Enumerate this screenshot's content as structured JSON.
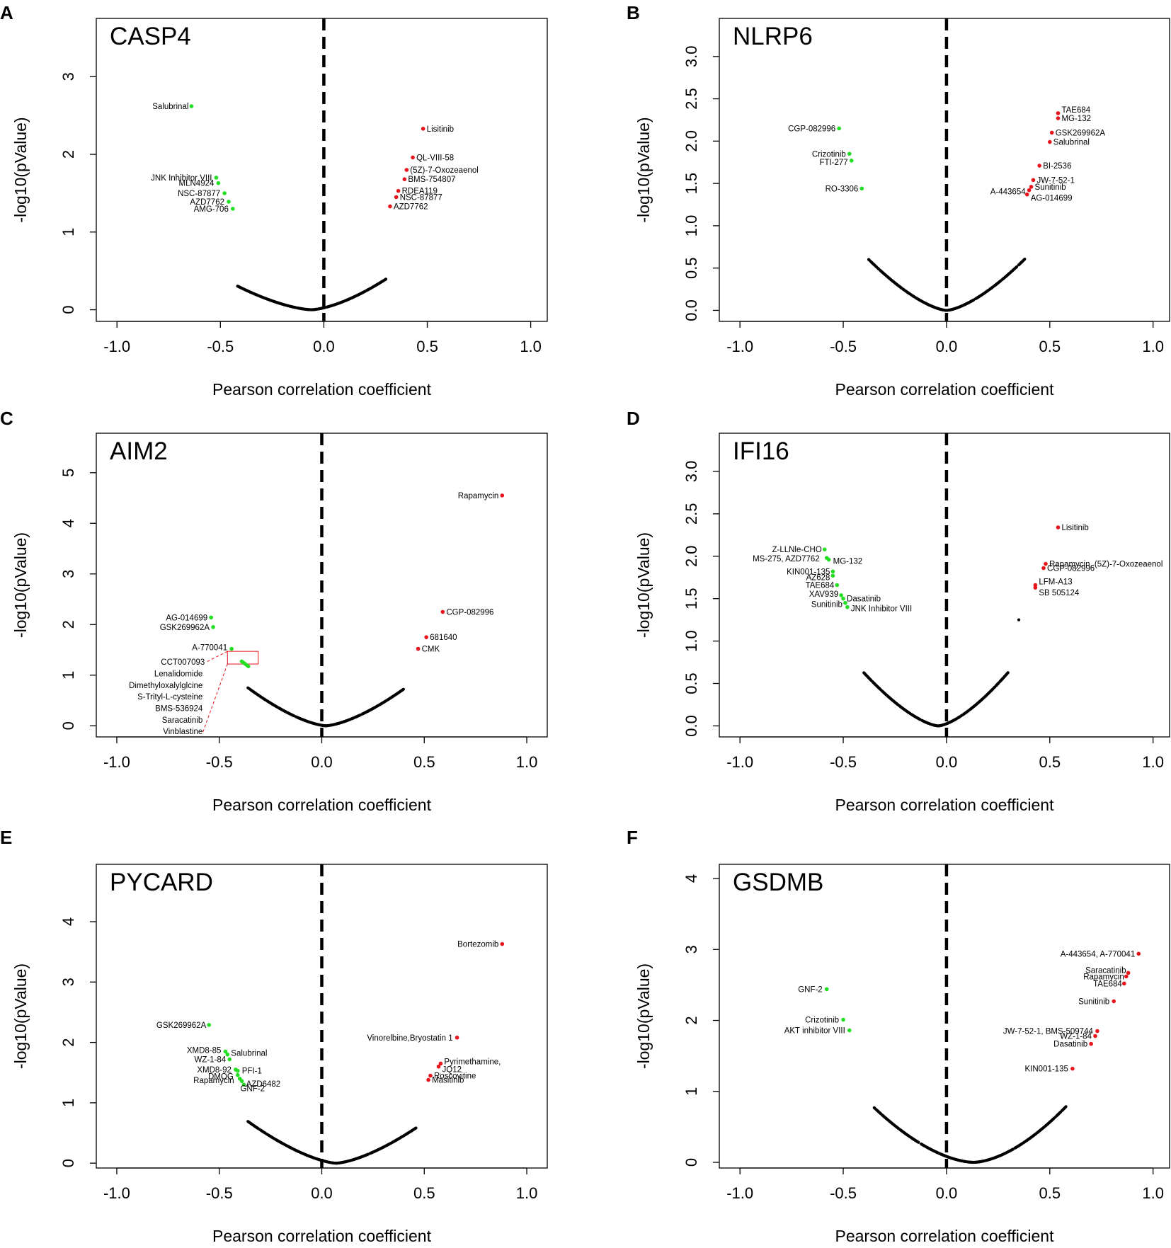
{
  "figure": {
    "panels_order": [
      "A",
      "B",
      "C",
      "D",
      "E",
      "F"
    ]
  },
  "chart_data": [
    {
      "panel": "A",
      "type": "scatter",
      "title": "CASP4",
      "xlabel": "Pearson correlation coefficient",
      "ylabel": "-log10(pValue)",
      "xlim": [
        -1.1,
        1.08
      ],
      "ylim": [
        -0.15,
        3.75
      ],
      "xticks": [
        -1.0,
        -0.5,
        0.0,
        0.5,
        1.0
      ],
      "xtick_labels": [
        "-1.0",
        "-0.5",
        "0.0",
        "0.5",
        "1.0"
      ],
      "yticks": [
        0,
        1,
        2,
        3
      ],
      "ytick_labels": [
        "0",
        "1",
        "2",
        "3"
      ],
      "curve": {
        "vertex": -0.06,
        "left_end": -0.42,
        "right_end": 0.3,
        "k_left": 1.5,
        "k_right": 1.92,
        "p": 1.55
      },
      "highlighted": {
        "negative_color": "#22dd22",
        "positive_color": "#e8141c",
        "points": [
          {
            "label": "Salubrinal",
            "x": -0.64,
            "y": 2.62,
            "sign": "neg"
          },
          {
            "label": "JNK Inhibitor VIII",
            "x": -0.52,
            "y": 1.7,
            "sign": "neg"
          },
          {
            "label": "MLN4924",
            "x": -0.51,
            "y": 1.63,
            "sign": "neg"
          },
          {
            "label": "NSC-87877",
            "x": -0.48,
            "y": 1.5,
            "sign": "neg"
          },
          {
            "label": "AZD7762",
            "x": -0.46,
            "y": 1.39,
            "sign": "neg"
          },
          {
            "label": "AMG-706",
            "x": -0.44,
            "y": 1.3,
            "sign": "neg"
          },
          {
            "label": "Lisitinib",
            "x": 0.48,
            "y": 2.33,
            "sign": "pos"
          },
          {
            "label": "QL-VIII-58",
            "x": 0.43,
            "y": 1.96,
            "sign": "pos"
          },
          {
            "label": "(5Z)-7-Oxozeaenol",
            "x": 0.4,
            "y": 1.8,
            "sign": "pos"
          },
          {
            "label": "BMS-754807",
            "x": 0.39,
            "y": 1.68,
            "sign": "pos"
          },
          {
            "label": "RDEA119",
            "x": 0.36,
            "y": 1.53,
            "sign": "pos"
          },
          {
            "label": "NSC-87877",
            "x": 0.35,
            "y": 1.45,
            "sign": "pos"
          },
          {
            "label": "AZD7762",
            "x": 0.32,
            "y": 1.33,
            "sign": "pos"
          }
        ]
      }
    },
    {
      "panel": "B",
      "type": "scatter",
      "title": "NLRP6",
      "xlabel": "Pearson correlation coefficient",
      "ylabel": "-log10(pValue)",
      "xlim": [
        -1.1,
        1.08
      ],
      "ylim": [
        -0.13,
        3.45
      ],
      "xticks": [
        -1.0,
        -0.5,
        0.0,
        0.5,
        1.0
      ],
      "xtick_labels": [
        "-1.0",
        "-0.5",
        "0.0",
        "0.5",
        "1.0"
      ],
      "yticks": [
        0.0,
        0.5,
        1.0,
        1.5,
        2.0,
        2.5,
        3.0
      ],
      "ytick_labels": [
        "0.0",
        "0.5",
        "1.0",
        "1.5",
        "2.0",
        "2.5",
        "3.0"
      ],
      "curve": {
        "vertex": 0.0,
        "left_end": -0.38,
        "right_end": 0.38,
        "k_left": 2.6,
        "k_right": 2.6,
        "p": 1.5
      },
      "highlighted": {
        "negative_color": "#22dd22",
        "positive_color": "#e8141c",
        "points": [
          {
            "label": "CGP-082996",
            "x": -0.52,
            "y": 2.15,
            "sign": "neg"
          },
          {
            "label": "Crizotinib",
            "x": -0.47,
            "y": 1.85,
            "sign": "neg"
          },
          {
            "label": "FTI-277",
            "x": -0.46,
            "y": 1.77,
            "sign": "neg"
          },
          {
            "label": "RO-3306",
            "x": -0.41,
            "y": 1.44,
            "sign": "neg"
          },
          {
            "label": "TAE684",
            "x": 0.54,
            "y": 2.33,
            "sign": "pos"
          },
          {
            "label": "MG-132",
            "x": 0.54,
            "y": 2.27,
            "sign": "pos"
          },
          {
            "label": "GSK269962A",
            "x": 0.51,
            "y": 2.1,
            "sign": "pos"
          },
          {
            "label": "Salubrinal",
            "x": 0.5,
            "y": 1.99,
            "sign": "pos"
          },
          {
            "label": "BI-2536",
            "x": 0.45,
            "y": 1.71,
            "sign": "pos"
          },
          {
            "label": "JW-7-52-1",
            "x": 0.42,
            "y": 1.54,
            "sign": "pos"
          },
          {
            "label": "Sunitinib",
            "x": 0.41,
            "y": 1.46,
            "sign": "pos"
          },
          {
            "label": "A-443654",
            "x": 0.4,
            "y": 1.42,
            "sign": "pos"
          },
          {
            "label": "AG-014699",
            "x": 0.39,
            "y": 1.37,
            "sign": "pos"
          }
        ]
      }
    },
    {
      "panel": "C",
      "type": "scatter",
      "title": "AIM2",
      "xlabel": "Pearson correlation coefficient",
      "ylabel": "-log10(pValue)",
      "xlim": [
        -1.1,
        1.1
      ],
      "ylim": [
        -0.22,
        5.78
      ],
      "xticks": [
        -1.0,
        -0.5,
        0.0,
        0.5,
        1.0
      ],
      "xtick_labels": [
        "-1.0",
        "-0.5",
        "0.0",
        "0.5",
        "1.0"
      ],
      "yticks": [
        0,
        1,
        2,
        3,
        4,
        5
      ],
      "ytick_labels": [
        "0",
        "1",
        "2",
        "3",
        "4",
        "5"
      ],
      "curve": {
        "vertex": 0.02,
        "left_end": -0.36,
        "right_end": 0.4,
        "k_left": 3.2,
        "k_right": 3.1,
        "p": 1.5
      },
      "highlighted": {
        "negative_color": "#22dd22",
        "positive_color": "#e8141c",
        "points": [
          {
            "label": "AG-014699",
            "x": -0.54,
            "y": 2.14,
            "sign": "neg"
          },
          {
            "label": "GSK269962A",
            "x": -0.53,
            "y": 1.95,
            "sign": "neg"
          },
          {
            "label": "A-770041",
            "x": -0.44,
            "y": 1.52,
            "sign": "neg"
          },
          {
            "label": "Rapamycin",
            "x": 0.88,
            "y": 4.55,
            "sign": "pos"
          },
          {
            "label": "CGP-082996",
            "x": 0.59,
            "y": 2.25,
            "sign": "pos"
          },
          {
            "label": "681640",
            "x": 0.51,
            "y": 1.75,
            "sign": "pos"
          },
          {
            "label": "CMK",
            "x": 0.47,
            "y": 1.52,
            "sign": "pos"
          }
        ]
      },
      "inset_cluster": {
        "box_x": [
          -0.46,
          -0.31
        ],
        "box_y": [
          1.22,
          1.47
        ],
        "labels": [
          "CCT007093",
          "Lenalidomide",
          "Dimethyloxalylglcine",
          "S-Trityl-L-cysteine",
          "BMS-536924",
          "Saracatinib",
          "Vinblastine"
        ]
      }
    },
    {
      "panel": "D",
      "type": "scatter",
      "title": "IFI16",
      "xlabel": "Pearson correlation coefficient",
      "ylabel": "-log10(pValue)",
      "xlim": [
        -1.1,
        1.08
      ],
      "ylim": [
        -0.13,
        3.45
      ],
      "xticks": [
        -1.0,
        -0.5,
        0.0,
        0.5,
        1.0
      ],
      "xtick_labels": [
        "-1.0",
        "-0.5",
        "0.0",
        "0.5",
        "1.0"
      ],
      "yticks": [
        0.0,
        0.5,
        1.0,
        1.5,
        2.0,
        2.5,
        3.0
      ],
      "ytick_labels": [
        "0.0",
        "0.5",
        "1.0",
        "1.5",
        "2.0",
        "2.5",
        "3.0"
      ],
      "curve": {
        "vertex": -0.04,
        "left_end": -0.4,
        "right_end": 0.3,
        "k_left": 2.9,
        "k_right": 3.2,
        "p": 1.5
      },
      "extra_points": [
        {
          "x": 0.35,
          "y": 1.25
        }
      ],
      "highlighted": {
        "negative_color": "#22dd22",
        "positive_color": "#e8141c",
        "points": [
          {
            "label": "Z-LLNle-CHO",
            "x": -0.59,
            "y": 2.08,
            "sign": "neg"
          },
          {
            "label": "MS-275, AZD7762",
            "x": -0.58,
            "y": 1.98,
            "sign": "neg"
          },
          {
            "label": "MG-132",
            "x": -0.57,
            "y": 1.96,
            "sign": "neg"
          },
          {
            "label": "KIN001-135",
            "x": -0.55,
            "y": 1.82,
            "sign": "neg"
          },
          {
            "label": "AZ628",
            "x": -0.55,
            "y": 1.77,
            "sign": "neg"
          },
          {
            "label": "TAE684",
            "x": -0.53,
            "y": 1.66,
            "sign": "neg"
          },
          {
            "label": "XAV939",
            "x": -0.51,
            "y": 1.54,
            "sign": "neg"
          },
          {
            "label": "Dasatinib",
            "x": -0.5,
            "y": 1.5,
            "sign": "neg"
          },
          {
            "label": "Sunitinib",
            "x": -0.49,
            "y": 1.45,
            "sign": "neg"
          },
          {
            "label": "JNK Inhibitor VIII",
            "x": -0.48,
            "y": 1.4,
            "sign": "neg"
          },
          {
            "label": "Lisitinib",
            "x": 0.54,
            "y": 2.34,
            "sign": "pos"
          },
          {
            "label": "Rapamycin,  (5Z)-7-Oxozeaenol",
            "x": 0.48,
            "y": 1.91,
            "sign": "pos"
          },
          {
            "label": "CGP-082996",
            "x": 0.47,
            "y": 1.86,
            "sign": "pos"
          },
          {
            "label": "LFM-A13",
            "x": 0.43,
            "y": 1.66,
            "sign": "pos"
          },
          {
            "label": "SB 505124",
            "x": 0.43,
            "y": 1.63,
            "sign": "pos"
          }
        ]
      }
    },
    {
      "panel": "E",
      "type": "scatter",
      "title": "PYCARD",
      "xlabel": "Pearson correlation coefficient",
      "ylabel": "-log10(pValue)",
      "xlim": [
        -1.1,
        1.1
      ],
      "ylim": [
        -0.08,
        4.95
      ],
      "xticks": [
        -1.0,
        -0.5,
        0.0,
        0.5,
        1.0
      ],
      "xtick_labels": [
        "-1.0",
        "-0.5",
        "0.0",
        "0.5",
        "1.0"
      ],
      "yticks": [
        0,
        1,
        2,
        3,
        4
      ],
      "ytick_labels": [
        "0",
        "1",
        "2",
        "3",
        "4"
      ],
      "curve": {
        "vertex": 0.07,
        "left_end": -0.36,
        "right_end": 0.46,
        "k_left": 2.45,
        "k_right": 2.4,
        "p": 1.5
      },
      "highlighted": {
        "negative_color": "#22dd22",
        "positive_color": "#e8141c",
        "points": [
          {
            "label": "GSK269962A",
            "x": -0.55,
            "y": 2.29,
            "sign": "neg"
          },
          {
            "label": "XMD8-85",
            "x": -0.47,
            "y": 1.85,
            "sign": "neg"
          },
          {
            "label": "Salubrinal",
            "x": -0.46,
            "y": 1.8,
            "sign": "neg"
          },
          {
            "label": "WZ-1-84",
            "x": -0.45,
            "y": 1.72,
            "sign": "neg"
          },
          {
            "label": "XMD8-92",
            "x": -0.42,
            "y": 1.55,
            "sign": "neg"
          },
          {
            "label": "PFI-1",
            "x": -0.41,
            "y": 1.53,
            "sign": "neg"
          },
          {
            "label": "DMOG",
            "x": -0.41,
            "y": 1.46,
            "sign": "neg"
          },
          {
            "label": "Rapamycin",
            "x": -0.4,
            "y": 1.4,
            "sign": "neg"
          },
          {
            "label": "AZD6482",
            "x": -0.39,
            "y": 1.36,
            "sign": "neg"
          },
          {
            "label": "GNF-2",
            "x": -0.38,
            "y": 1.3,
            "sign": "neg"
          },
          {
            "label": "Bortezomib",
            "x": 0.88,
            "y": 3.63,
            "sign": "pos"
          },
          {
            "label": "Vinorelbine,Bryostatin 1",
            "x": 0.66,
            "y": 2.08,
            "sign": "pos"
          },
          {
            "label": "Pyrimethamine,",
            "x": 0.58,
            "y": 1.65,
            "sign": "pos"
          },
          {
            "label": "JQ12",
            "x": 0.57,
            "y": 1.6,
            "sign": "pos"
          },
          {
            "label": "Roscovitine",
            "x": 0.53,
            "y": 1.45,
            "sign": "pos"
          },
          {
            "label": "Masitinib",
            "x": 0.52,
            "y": 1.38,
            "sign": "pos"
          }
        ]
      }
    },
    {
      "panel": "F",
      "type": "scatter",
      "title": "GSDMB",
      "xlabel": "Pearson correlation coefficient",
      "ylabel": "-log10(pValue)",
      "xlim": [
        -1.1,
        1.08
      ],
      "ylim": [
        -0.08,
        4.2
      ],
      "xticks": [
        -1.0,
        -0.5,
        0.0,
        0.5,
        1.0
      ],
      "xtick_labels": [
        "-1.0",
        "-0.5",
        "0.0",
        "0.5",
        "1.0"
      ],
      "yticks": [
        0,
        1,
        2,
        3,
        4
      ],
      "ytick_labels": [
        "0",
        "1",
        "2",
        "3",
        "4"
      ],
      "curve": {
        "vertex": 0.13,
        "left_end": -0.35,
        "right_end": 0.58,
        "k_left": 2.68,
        "k_right": 3.07,
        "p": 1.7
      },
      "highlighted": {
        "negative_color": "#22dd22",
        "positive_color": "#e8141c",
        "points": [
          {
            "label": "GNF-2",
            "x": -0.58,
            "y": 2.44,
            "sign": "neg"
          },
          {
            "label": "Crizotinib",
            "x": -0.5,
            "y": 2.01,
            "sign": "neg"
          },
          {
            "label": "AKT inhibitor VIII",
            "x": -0.47,
            "y": 1.86,
            "sign": "neg"
          },
          {
            "label": "A-443654, A-770041",
            "x": 0.93,
            "y": 2.94,
            "sign": "pos"
          },
          {
            "label": "Saracatinib",
            "x": 0.88,
            "y": 2.67,
            "sign": "pos"
          },
          {
            "label": "Rapamycin",
            "x": 0.87,
            "y": 2.62,
            "sign": "pos"
          },
          {
            "label": "TAE684",
            "x": 0.86,
            "y": 2.52,
            "sign": "pos"
          },
          {
            "label": "Sunitinib",
            "x": 0.81,
            "y": 2.27,
            "sign": "pos"
          },
          {
            "label": "JW-7-52-1, BMS-509744",
            "x": 0.73,
            "y": 1.85,
            "sign": "pos"
          },
          {
            "label": "WZ-1-84",
            "x": 0.72,
            "y": 1.78,
            "sign": "pos"
          },
          {
            "label": "Dasatinib",
            "x": 0.7,
            "y": 1.67,
            "sign": "pos"
          },
          {
            "label": "KIN001-135",
            "x": 0.61,
            "y": 1.32,
            "sign": "pos"
          }
        ]
      }
    }
  ]
}
